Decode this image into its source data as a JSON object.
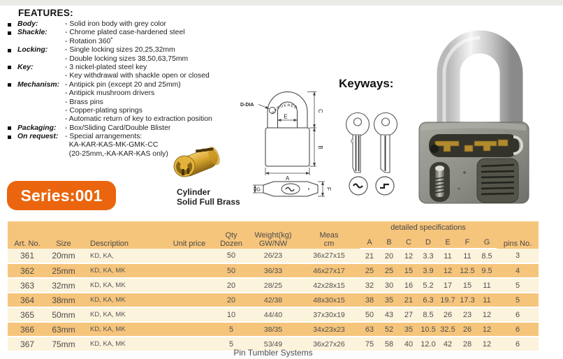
{
  "features": {
    "title": "FEATURES:",
    "lines": [
      {
        "bullet": true,
        "label": "Body:",
        "text": "- Solid iron body with grey color"
      },
      {
        "bullet": true,
        "label": "Shackle:",
        "text": "- Chrome plated case-hardened steel"
      },
      {
        "bullet": false,
        "label": "",
        "text": "- Rotation 360˚"
      },
      {
        "bullet": true,
        "label": "Locking:",
        "text": "- Single locking sizes 20,25,32mm"
      },
      {
        "bullet": false,
        "label": "",
        "text": "- Double locking sizes 38,50,63,75mm"
      },
      {
        "bullet": true,
        "label": "Key:",
        "text": "- 3 nickel-plated steel key"
      },
      {
        "bullet": false,
        "label": "",
        "text": "- Key withdrawal with shackle open or closed"
      },
      {
        "bullet": true,
        "label": "Mechanism:",
        "text": "- Antipick pin (except 20 and 25mm)"
      },
      {
        "bullet": false,
        "label": "",
        "text": "- Antipick mushroom drivers"
      },
      {
        "bullet": false,
        "label": "",
        "text": "- Brass pins"
      },
      {
        "bullet": false,
        "label": "",
        "text": "- Copper-plating springs"
      },
      {
        "bullet": false,
        "label": "",
        "text": "- Automatic return of key to extraction position"
      },
      {
        "bullet": true,
        "label": "Packaging:",
        "text": "- Box/Sliding Card/Double Blister"
      },
      {
        "bullet": true,
        "label": "On request:",
        "text": "- Special arrangements:"
      },
      {
        "bullet": false,
        "label": "",
        "text": "  KA-KAR-KAS-MK-GMK-CC"
      },
      {
        "bullet": false,
        "label": "",
        "text": "  (20-25mm,-KA-KAR-KAS only)"
      }
    ]
  },
  "series_badge": {
    "label": "Series:001"
  },
  "cylinder": {
    "caption_line1": "Cylinder",
    "caption_line2": "Solid Full Brass"
  },
  "keyways": {
    "title": "Keyways:"
  },
  "diagram": {
    "labels": {
      "hardened": "HARDENED",
      "d_dia": "D-DIA",
      "e": "E",
      "c": "C",
      "b": "B",
      "a": "A",
      "g": "G",
      "f": "F"
    }
  },
  "table": {
    "headers": {
      "art_no": "Art. No.",
      "size": "Size",
      "description": "Description",
      "unit_price": "Unit price",
      "qty_line1": "Qty",
      "qty_line2": "Dozen",
      "weight_line1": "Weight(kg)",
      "weight_line2": "GW/NW",
      "meas_line1": "Meas",
      "meas_line2": "cm",
      "detailed_specs": "detailed specifications",
      "spec_letters": [
        "A",
        "B",
        "C",
        "D",
        "E",
        "F",
        "G"
      ],
      "pins": "pins No."
    },
    "rows": [
      {
        "art_no": "361",
        "size": "20mm",
        "description": "KD, KA,",
        "unit_price": "",
        "qty": "50",
        "weight": "26/23",
        "meas": "36x27x15",
        "specs": [
          "21",
          "20",
          "12",
          "3.3",
          "11",
          "11",
          "8.5"
        ],
        "pins": "3"
      },
      {
        "art_no": "362",
        "size": "25mm",
        "description": "KD, KA, MK",
        "unit_price": "",
        "qty": "50",
        "weight": "36/33",
        "meas": "46x27x17",
        "specs": [
          "25",
          "25",
          "15",
          "3.9",
          "12",
          "12.5",
          "9.5"
        ],
        "pins": "4"
      },
      {
        "art_no": "363",
        "size": "32mm",
        "description": "KD, KA, MK",
        "unit_price": "",
        "qty": "20",
        "weight": "28/25",
        "meas": "42x28x15",
        "specs": [
          "32",
          "30",
          "16",
          "5.2",
          "17",
          "15",
          "11"
        ],
        "pins": "5"
      },
      {
        "art_no": "364",
        "size": "38mm",
        "description": "KD, KA, MK",
        "unit_price": "",
        "qty": "20",
        "weight": "42/38",
        "meas": "48x30x15",
        "specs": [
          "38",
          "35",
          "21",
          "6.3",
          "19.7",
          "17.3",
          "11"
        ],
        "pins": "5"
      },
      {
        "art_no": "365",
        "size": "50mm",
        "description": "KD, KA, MK",
        "unit_price": "",
        "qty": "10",
        "weight": "44/40",
        "meas": "37x30x19",
        "specs": [
          "50",
          "43",
          "27",
          "8.5",
          "26",
          "23",
          "12"
        ],
        "pins": "6"
      },
      {
        "art_no": "366",
        "size": "63mm",
        "description": "KD, KA, MK",
        "unit_price": "",
        "qty": "5",
        "weight": "38/35",
        "meas": "34x23x23",
        "specs": [
          "63",
          "52",
          "35",
          "10.5",
          "32.5",
          "26",
          "12"
        ],
        "pins": "6"
      },
      {
        "art_no": "367",
        "size": "75mm",
        "description": "KD, KA, MK",
        "unit_price": "",
        "qty": "5",
        "weight": "53/49",
        "meas": "36x27x26",
        "specs": [
          "75",
          "58",
          "40",
          "12.0",
          "42",
          "28",
          "12"
        ],
        "pins": "6"
      }
    ]
  },
  "footer": {
    "caption": "Pin Tumbler Systems"
  },
  "colors": {
    "accent_orange": "#ea650d",
    "row_orange": "#f6c57c",
    "row_cream": "#fcf3dc",
    "body_grey": "#8f9089",
    "brass": "#d9a62e"
  }
}
